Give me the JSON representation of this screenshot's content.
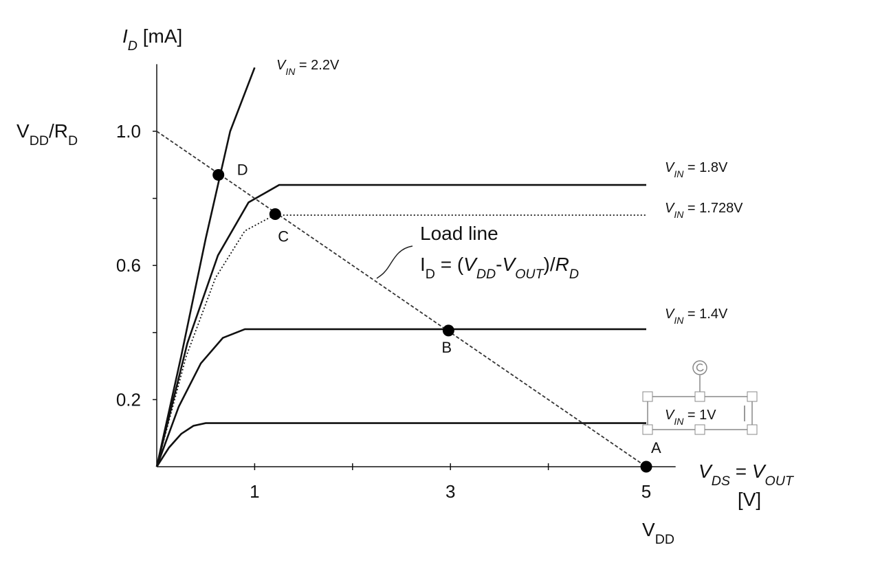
{
  "chart_data": {
    "type": "line",
    "ylabel": [
      [
        "I",
        "i"
      ],
      [
        "D",
        "sub-i"
      ],
      [
        " [mA]",
        ""
      ]
    ],
    "ylabel2": [
      [
        "V",
        ""
      ],
      [
        "DD",
        "sub"
      ],
      [
        "/R",
        ""
      ],
      [
        "D",
        "sub"
      ]
    ],
    "xlabel": [
      [
        "V",
        "i"
      ],
      [
        "DS",
        "sub-i"
      ],
      [
        " = ",
        ""
      ],
      [
        "V",
        "i"
      ],
      [
        "OUT",
        "sub-i"
      ]
    ],
    "xunit": "[V]",
    "xlabel2": [
      [
        "V",
        ""
      ],
      [
        "DD",
        "sub"
      ]
    ],
    "xlim": [
      0,
      5.3
    ],
    "ylim": [
      0,
      1.2
    ],
    "xticks": [
      1,
      3,
      5
    ],
    "xminor": [
      2,
      4
    ],
    "yticks": [
      0.2,
      0.6,
      {
        "value": 1.0,
        "label": "1.0"
      }
    ],
    "yminor": [
      0.4,
      0.8
    ],
    "series": [
      {
        "name": [
          [
            "V",
            "i"
          ],
          [
            "IN",
            "sub-i"
          ],
          [
            " = 2.2V",
            ""
          ]
        ],
        "color": "#111111",
        "dash": "solid",
        "x": [
          0,
          0.25,
          0.5,
          0.75,
          1.0
        ],
        "values": [
          0,
          0.33,
          0.68,
          1.0,
          1.19
        ]
      },
      {
        "name": [
          [
            "V",
            "i"
          ],
          [
            "IN",
            "sub-i"
          ],
          [
            " = 1.8V",
            ""
          ]
        ],
        "color": "#111111",
        "dash": "solid",
        "x": [
          0,
          0.3125,
          0.625,
          0.9375,
          1.25,
          5
        ],
        "values": [
          0,
          0.368,
          0.63,
          0.788,
          0.84,
          0.84
        ]
      },
      {
        "name": [
          [
            "V",
            "i"
          ],
          [
            "IN",
            "sub-i"
          ],
          [
            " = 1.728V",
            ""
          ]
        ],
        "color": "#111111",
        "dash": "dotted",
        "x": [
          0,
          0.3,
          0.6,
          0.9,
          1.2,
          5
        ],
        "values": [
          0,
          0.328,
          0.563,
          0.703,
          0.75,
          0.75
        ]
      },
      {
        "name": [
          [
            "V",
            "i"
          ],
          [
            "IN",
            "sub-i"
          ],
          [
            " = 1.4V",
            ""
          ]
        ],
        "color": "#111111",
        "dash": "solid",
        "x": [
          0,
          0.225,
          0.45,
          0.675,
          0.9,
          5
        ],
        "values": [
          0,
          0.179,
          0.308,
          0.384,
          0.41,
          0.41
        ]
      },
      {
        "name": [
          [
            "V",
            "i"
          ],
          [
            "IN",
            "sub-i"
          ],
          [
            " = 1V",
            ""
          ]
        ],
        "color": "#111111",
        "dash": "solid",
        "x": [
          0,
          0.125,
          0.25,
          0.375,
          0.5,
          5
        ],
        "values": [
          0,
          0.057,
          0.098,
          0.122,
          0.13,
          0.13
        ]
      },
      {
        "name": [
          [
            "Load line",
            ""
          ]
        ],
        "color": "#333333",
        "dash": "dashed",
        "x": [
          0,
          5
        ],
        "values": [
          1.0,
          0
        ]
      }
    ],
    "equation": [
      [
        "I",
        ""
      ],
      [
        "D",
        "sub"
      ],
      [
        " = (",
        ""
      ],
      [
        "V",
        "i"
      ],
      [
        "DD",
        "sub-i"
      ],
      [
        "-",
        ""
      ],
      [
        "V",
        "i"
      ],
      [
        "OUT",
        "sub-i"
      ],
      [
        ")/",
        ""
      ],
      [
        "R",
        "i"
      ],
      [
        "D",
        "sub-i"
      ]
    ],
    "points": {
      "labels": [
        "A",
        "B",
        "C",
        "D"
      ],
      "x": [
        5,
        2.98,
        1.21,
        0.63
      ],
      "values": [
        0,
        0.406,
        0.753,
        0.87
      ]
    }
  }
}
